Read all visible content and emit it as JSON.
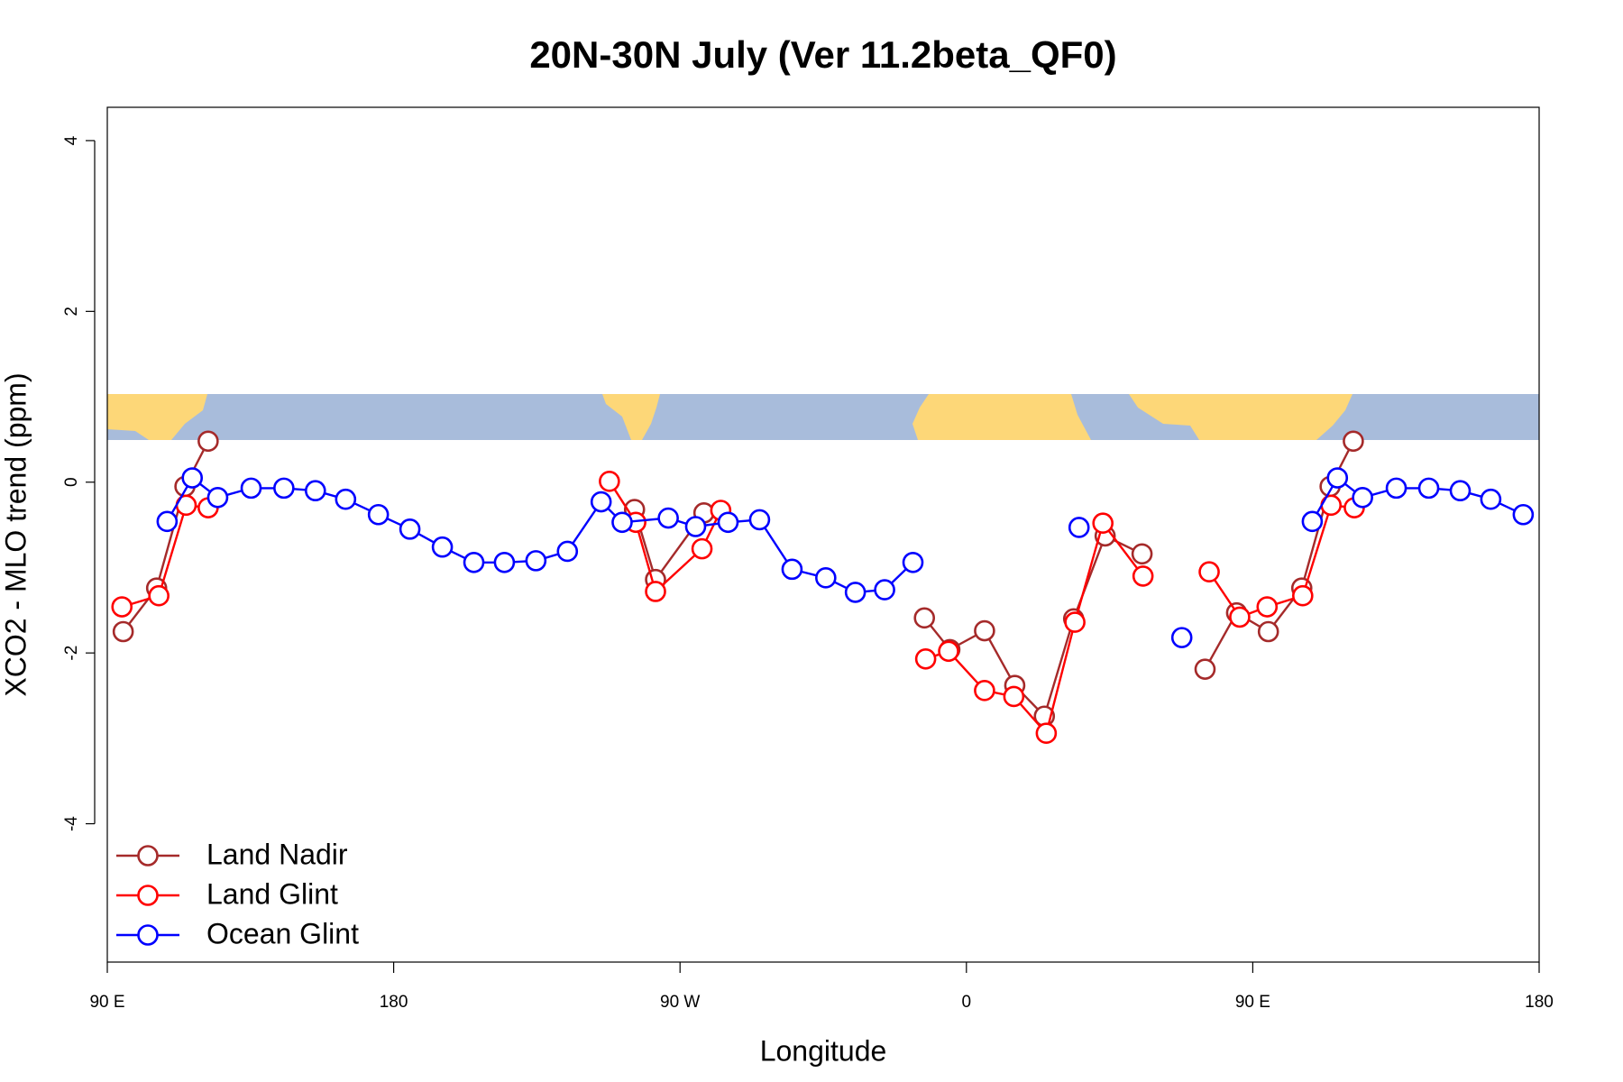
{
  "chart_data": {
    "type": "line",
    "title": "20N-30N July (Ver 11.2beta_QF0)",
    "x_label": "Longitude",
    "y_label": "XCO2 - MLO trend (ppm)",
    "xlim": [
      90,
      540
    ],
    "ylim": [
      -5.62,
      4.39
    ],
    "xticks": [
      {
        "value": 90,
        "label": "90 E"
      },
      180,
      {
        "value": 270,
        "label": "90 W"
      },
      {
        "value": 360,
        "label": "0"
      },
      {
        "value": 450,
        "label": "90 E"
      },
      {
        "value": 540,
        "label": "180"
      }
    ],
    "yticks": [
      -4,
      -2,
      0,
      2,
      4
    ],
    "legend": "bottomleft",
    "series": [
      {
        "name": "Land Nadir",
        "color": "#a52a2a",
        "x": [
          95.0,
          105.5,
          114.4,
          121.7,
          null,
          255.7,
          262.3,
          277.5,
          null,
          346.8,
          354.8,
          365.7,
          375.2,
          384.5,
          393.7,
          403.6,
          415.2,
          null,
          435.0,
          444.9,
          454.9,
          465.4,
          474.3,
          481.6
        ],
        "values": [
          -1.75,
          -1.24,
          -0.05,
          0.48,
          null,
          -0.32,
          -1.14,
          -0.36,
          null,
          -1.59,
          -1.96,
          -1.74,
          -2.38,
          -2.74,
          -1.6,
          -0.63,
          -0.84,
          null,
          -2.19,
          -1.53,
          -1.75,
          -1.24,
          -0.05,
          0.48
        ]
      },
      {
        "name": "Land Glint",
        "color": "#ff0000",
        "x": [
          94.6,
          106.2,
          114.8,
          121.7,
          null,
          247.8,
          256.1,
          262.3,
          276.9,
          282.8,
          null,
          347.2,
          354.4,
          365.7,
          374.9,
          385.1,
          394.1,
          402.9,
          415.5,
          null,
          436.3,
          445.9,
          454.5,
          465.7,
          474.6,
          481.9
        ],
        "values": [
          -1.46,
          -1.33,
          -0.27,
          -0.3,
          null,
          0.01,
          -0.47,
          -1.28,
          -0.78,
          -0.33,
          null,
          -2.07,
          -1.98,
          -2.44,
          -2.51,
          -2.94,
          -1.64,
          -0.48,
          -1.1,
          null,
          -1.05,
          -1.58,
          -1.46,
          -1.33,
          -0.27,
          -0.3
        ]
      },
      {
        "name": "Ocean Glint",
        "color": "#0000ff",
        "x": [
          108.8,
          116.7,
          124.7,
          135.2,
          145.5,
          155.4,
          164.9,
          175.2,
          185.1,
          195.3,
          205.2,
          214.8,
          224.7,
          234.6,
          245.2,
          251.8,
          266.3,
          274.9,
          285.1,
          295.0,
          305.2,
          315.8,
          325.1,
          334.3,
          343.2,
          null,
          395.4,
          null,
          427.7,
          null,
          468.7,
          476.6,
          484.5,
          495.1,
          505.3,
          515.2,
          524.8,
          535.0
        ],
        "values": [
          -0.46,
          0.05,
          -0.18,
          -0.07,
          -0.07,
          -0.1,
          -0.2,
          -0.38,
          -0.55,
          -0.76,
          -0.94,
          -0.94,
          -0.92,
          -0.81,
          -0.23,
          -0.47,
          -0.42,
          -0.52,
          -0.47,
          -0.44,
          -1.02,
          -1.12,
          -1.29,
          -1.26,
          -0.94,
          null,
          -0.53,
          null,
          -1.82,
          null,
          -0.46,
          0.05,
          -0.18,
          -0.07,
          -0.07,
          -0.1,
          -0.2,
          -0.38
        ]
      }
    ]
  }
}
